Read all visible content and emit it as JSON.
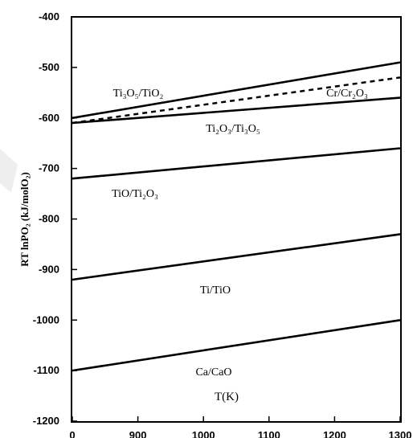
{
  "chart_data": {
    "type": "line",
    "title": "",
    "xlabel": "T(K)",
    "ylabel": "RT lnPO₂ (kJ/molO₂)",
    "x_tick_labels": [
      "0",
      "900",
      "1000",
      "1100",
      "1200",
      "1300"
    ],
    "y_tick_labels": [
      "-400",
      "-500",
      "-600",
      "-700",
      "-800",
      "-900",
      "-1000",
      "-1100",
      "-1200"
    ],
    "xlim": [
      800,
      1300
    ],
    "ylim": [
      -1200,
      -400
    ],
    "grid": false,
    "series": [
      {
        "name": "Ti₃O₅/TiO₂",
        "style": "solid",
        "x": [
          800,
          1300
        ],
        "y": [
          -600,
          -490
        ]
      },
      {
        "name": "Cr/Cr₂O₃",
        "style": "dashed",
        "x": [
          800,
          1300
        ],
        "y": [
          -610,
          -520
        ]
      },
      {
        "name": "Ti₂O₃/Ti₃O₅",
        "style": "solid",
        "x": [
          800,
          1300
        ],
        "y": [
          -610,
          -560
        ]
      },
      {
        "name": "TiO/Ti₂O₃",
        "style": "solid",
        "x": [
          800,
          1300
        ],
        "y": [
          -720,
          -660
        ]
      },
      {
        "name": "Ti/TiO",
        "style": "solid",
        "x": [
          800,
          1300
        ],
        "y": [
          -920,
          -830
        ]
      },
      {
        "name": "Ca/CaO",
        "style": "solid",
        "x": [
          800,
          1300
        ],
        "y": [
          -1100,
          -1000
        ]
      }
    ]
  }
}
